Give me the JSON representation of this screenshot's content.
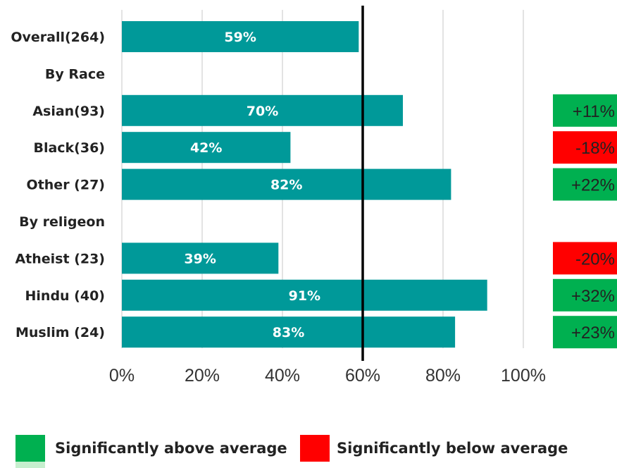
{
  "chart_data": {
    "type": "bar",
    "orientation": "horizontal",
    "categories": [
      "Overall(264)",
      "By Race",
      "Asian(93)",
      "Black(36)",
      "Other (27)",
      "By religeon",
      "Atheist (23)",
      "Hindu (40)",
      "Muslim (24)"
    ],
    "values": [
      59,
      null,
      70,
      42,
      82,
      null,
      39,
      91,
      83
    ],
    "value_labels": [
      "59%",
      "",
      "70%",
      "42%",
      "82%",
      "",
      "39%",
      "91%",
      "83%"
    ],
    "differences": [
      {
        "category": "Asian(93)",
        "label": "+11%",
        "significance": "above"
      },
      {
        "category": "Black(36)",
        "label": "-18%",
        "significance": "below"
      },
      {
        "category": "Other (27)",
        "label": "+22%",
        "significance": "above"
      },
      {
        "category": "Atheist (23)",
        "label": "-20%",
        "significance": "below"
      },
      {
        "category": "Hindu (40)",
        "label": "+32%",
        "significance": "above"
      },
      {
        "category": "Muslim (24)",
        "label": "+23%",
        "significance": "above"
      }
    ],
    "xlim": [
      0,
      100
    ],
    "xticks": [
      "0%",
      "20%",
      "40%",
      "60%",
      "80%",
      "100%"
    ],
    "reference_line": 60,
    "grid": true,
    "legend": [
      {
        "label": "Significantly above average",
        "color": "#00b050"
      },
      {
        "label": "Significantly below average",
        "color": "#ff0000"
      }
    ],
    "legend_position": "bottom",
    "colors": {
      "bar": "#009999",
      "above": "#00b050",
      "below": "#ff0000",
      "reference": "#000000",
      "grid": "#d0d0d0"
    }
  }
}
